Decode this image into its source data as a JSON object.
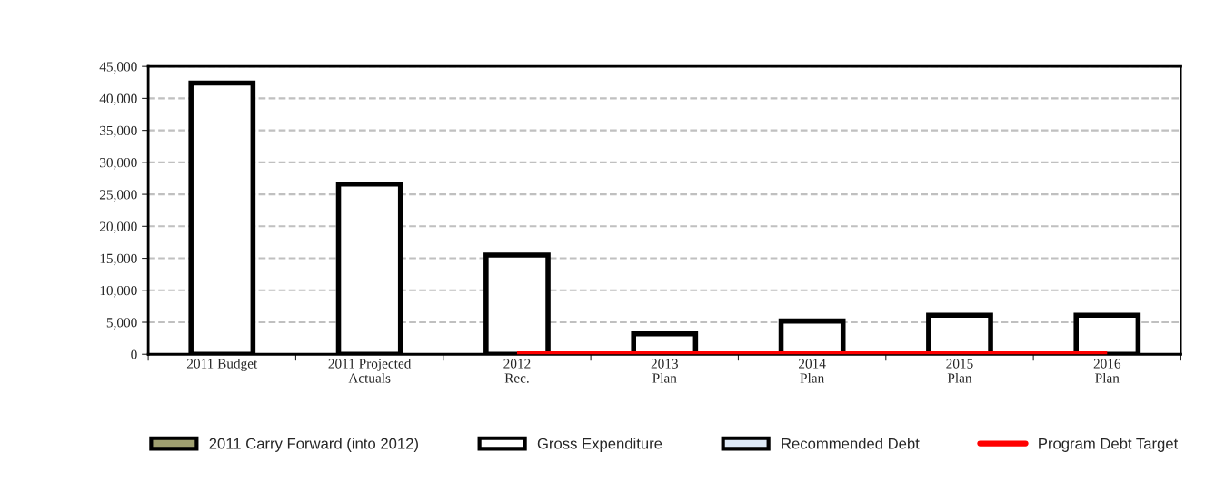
{
  "chart_data": {
    "type": "bar",
    "categories": [
      "2011 Budget",
      "2011 Projected\nActuals",
      "2012\nRec.",
      "2013\nPlan",
      "2014\nPlan",
      "2015\nPlan",
      "2016\nPlan"
    ],
    "series": [
      {
        "name": "2011 Carry Forward (into 2012)",
        "color": "#a0a070",
        "values": [
          null,
          null,
          null,
          null,
          null,
          null,
          null
        ]
      },
      {
        "name": "Gross Expenditure",
        "color": "#ffffff",
        "values": [
          42400,
          26600,
          15500,
          3200,
          5200,
          6100,
          6100
        ]
      },
      {
        "name": "Recommended Debt",
        "color": "#dde8f5",
        "values": [
          null,
          null,
          null,
          null,
          null,
          null,
          null
        ]
      },
      {
        "name": "Program Debt Target",
        "type": "line",
        "color": "#ff0000",
        "values": [
          null,
          null,
          0,
          0,
          0,
          0,
          0
        ]
      }
    ],
    "ylim": [
      0,
      45000
    ],
    "yticks": [
      0,
      {
        "value": 5000,
        "label": "5,000"
      },
      {
        "value": 10000,
        "label": "10,000"
      },
      {
        "value": 15000,
        "label": "15,000"
      },
      {
        "value": 20000,
        "label": "20,000"
      },
      {
        "value": 25000,
        "label": "25,000"
      },
      {
        "value": 30000,
        "label": "30,000"
      },
      {
        "value": 35000,
        "label": "35,000"
      },
      {
        "value": 40000,
        "label": "40,000"
      },
      {
        "value": 45000,
        "label": "45,000"
      }
    ],
    "grid": "y",
    "legend": "bottom"
  }
}
